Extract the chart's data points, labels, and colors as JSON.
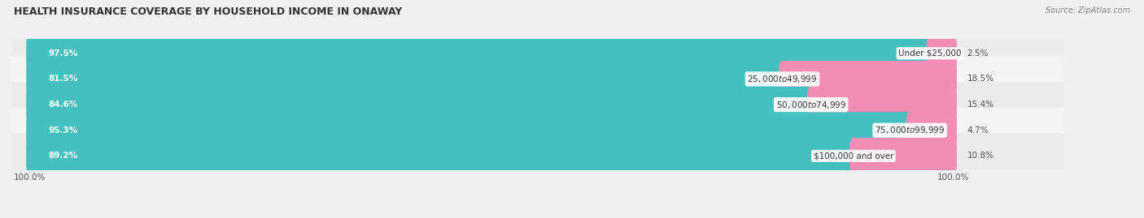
{
  "title": "HEALTH INSURANCE COVERAGE BY HOUSEHOLD INCOME IN ONAWAY",
  "source": "Source: ZipAtlas.com",
  "categories": [
    "Under $25,000",
    "$25,000 to $49,999",
    "$50,000 to $74,999",
    "$75,000 to $99,999",
    "$100,000 and over"
  ],
  "with_coverage": [
    97.5,
    81.5,
    84.6,
    95.3,
    89.2
  ],
  "without_coverage": [
    2.5,
    18.5,
    15.4,
    4.7,
    10.8
  ],
  "coverage_color": "#45BFBF",
  "no_coverage_color": "#F28DB4",
  "row_bg_colors": [
    "#EBEBEB",
    "#F4F4F4",
    "#EBEBEB",
    "#F4F4F4",
    "#EBEBEB"
  ],
  "title_fontsize": 9,
  "bar_label_fontsize": 7.5,
  "pct_fontsize": 7.5,
  "cat_fontsize": 7.5,
  "bar_height": 0.62,
  "xlim_left": -2,
  "xlim_right": 112,
  "bottom_tick_label": "100.0%"
}
